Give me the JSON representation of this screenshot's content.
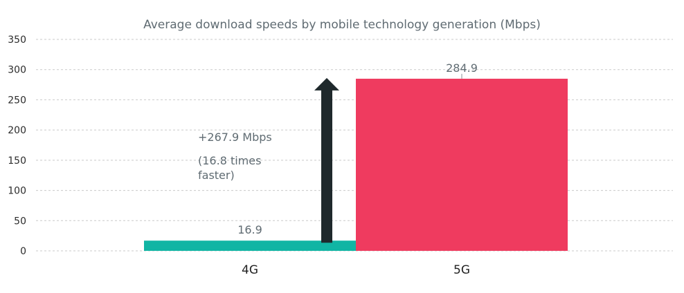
{
  "chart_data": {
    "type": "bar",
    "title": "Average download speeds by mobile technology generation (Mbps)",
    "categories": [
      "4G",
      "5G"
    ],
    "values": [
      16.9,
      284.9
    ],
    "data_labels": [
      "16.9",
      "284.9"
    ],
    "colors": [
      "#11b5a4",
      "#ef3b5f"
    ],
    "ylim": [
      0,
      350
    ],
    "yticks": [
      0,
      50,
      100,
      150,
      200,
      250,
      300,
      350
    ],
    "grid": true,
    "xlabel": "",
    "ylabel": "",
    "annotation": {
      "line1": "+267.9 Mbps",
      "line2": "(16.8 times",
      "line3": "faster)",
      "arrow_color": "#1f292c"
    }
  }
}
